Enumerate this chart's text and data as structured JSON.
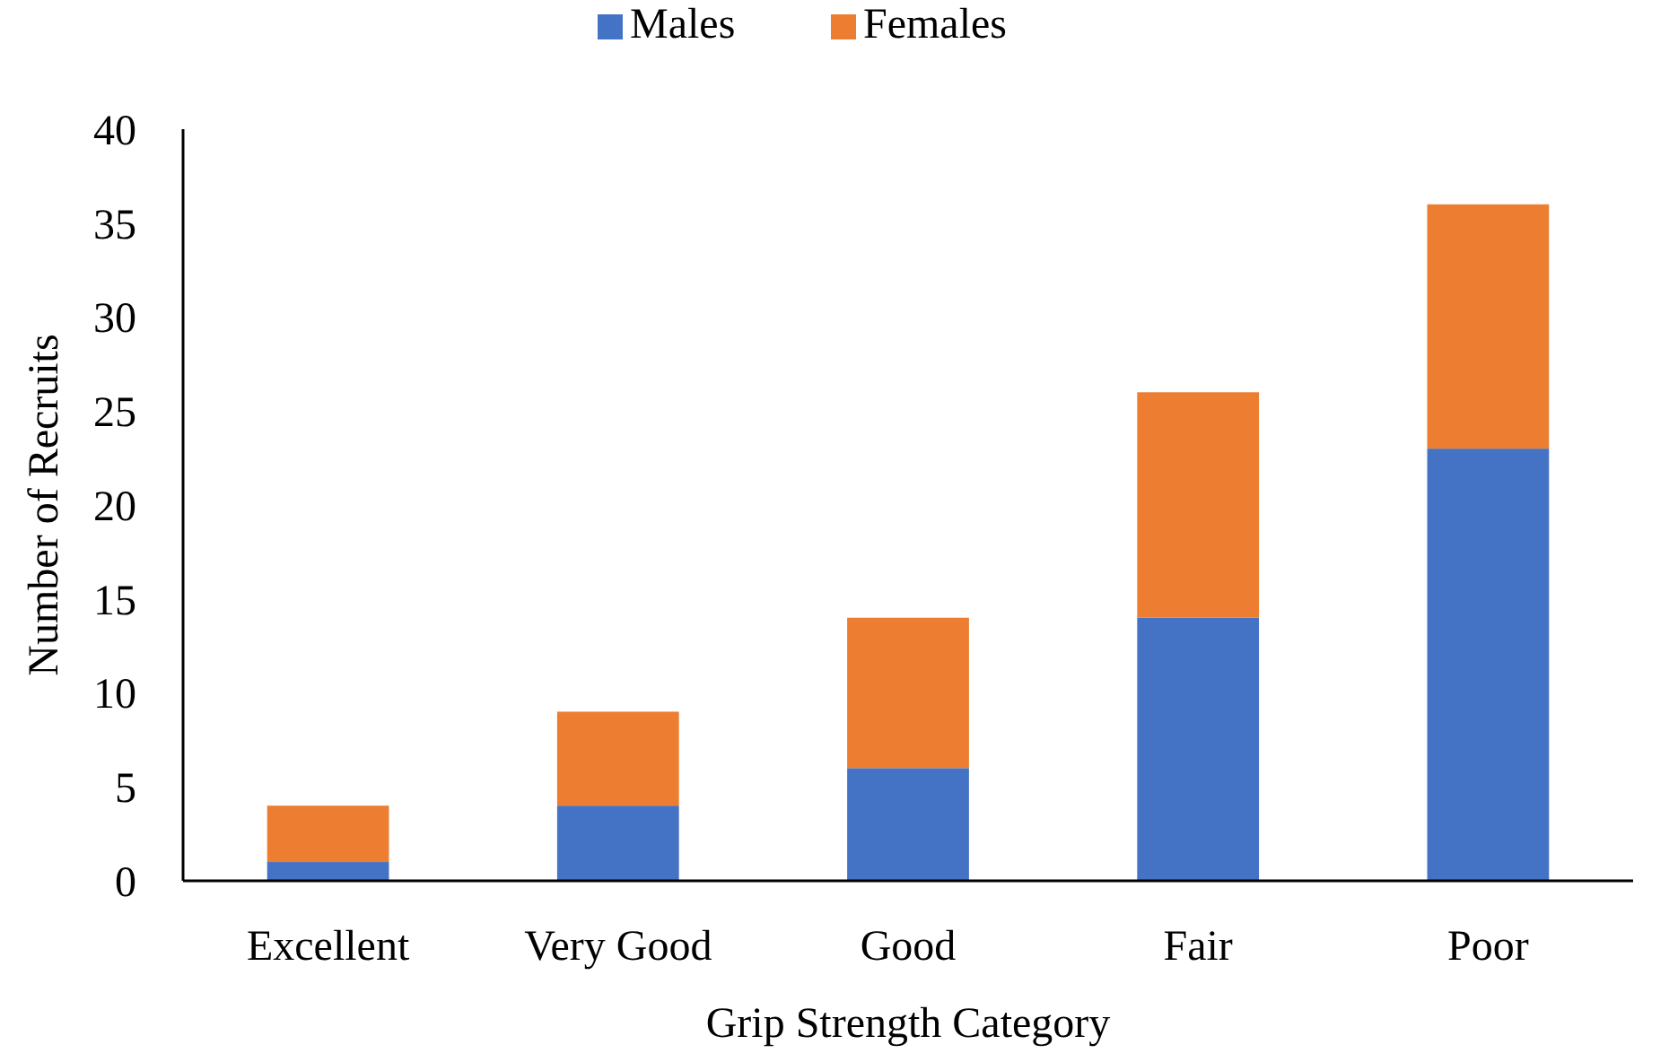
{
  "chart_data": {
    "type": "bar",
    "stacked": true,
    "xlabel": "Grip Strength Category",
    "ylabel": "Number of Recruits",
    "categories": [
      "Excellent",
      "Very Good",
      "Good",
      "Fair",
      "Poor"
    ],
    "series": [
      {
        "name": "Males",
        "color": "#4472c4",
        "values": [
          1,
          4,
          6,
          14,
          23
        ]
      },
      {
        "name": "Females",
        "color": "#ed7d31",
        "values": [
          3,
          5,
          8,
          12,
          13
        ]
      }
    ],
    "ylim": [
      0,
      40
    ],
    "yticks": [
      0,
      5,
      10,
      15,
      20,
      25,
      30,
      35,
      40
    ],
    "grid": false,
    "legend": "top"
  }
}
